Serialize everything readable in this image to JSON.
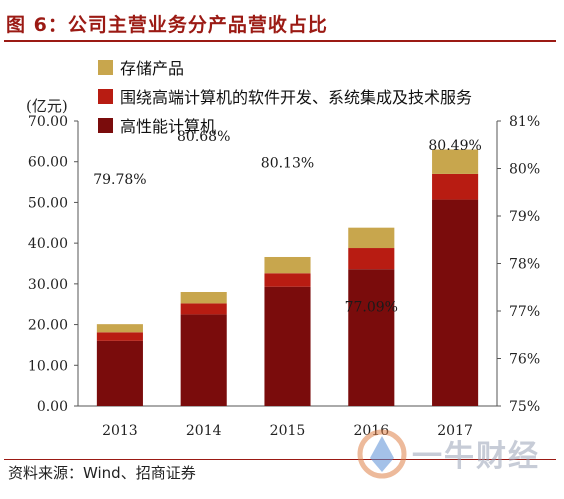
{
  "header": {
    "figure_title": "图 6：公司主营业务分产品营收占比"
  },
  "footer": {
    "source": "资料来源：Wind、招商证券"
  },
  "watermark": {
    "text": "一牛财经"
  },
  "chart_data": {
    "type": "bar",
    "stacked": true,
    "title": "",
    "ylabel": "(亿元)",
    "y2label": "",
    "categories": [
      "2013",
      "2014",
      "2015",
      "2016",
      "2017"
    ],
    "ylim": [
      0,
      70
    ],
    "yticks": [
      "0.00",
      "10.00",
      "20.00",
      "30.00",
      "40.00",
      "50.00",
      "60.00",
      "70.00"
    ],
    "y2lim": [
      75,
      81
    ],
    "y2ticks": [
      "75%",
      "76%",
      "77%",
      "78%",
      "79%",
      "80%",
      "81%"
    ],
    "grid": false,
    "legend_position": "top-left",
    "series": [
      {
        "name": "高性能计算机",
        "color": "#7a0c0c",
        "values": [
          16.0,
          22.5,
          29.3,
          33.6,
          50.7
        ]
      },
      {
        "name": "围绕高端计算机的软件开发、系统集成及技术服务",
        "color": "#b81c12",
        "values": [
          2.1,
          2.7,
          3.3,
          5.2,
          6.3
        ]
      },
      {
        "name": "存储产品",
        "color": "#c8a64d",
        "values": [
          2.0,
          2.8,
          4.0,
          5.0,
          6.0
        ]
      }
    ],
    "legend_order": [
      2,
      1,
      0
    ],
    "annotations": [
      "79.78%",
      "80.68%",
      "80.13%",
      "77.09%",
      "80.49%"
    ]
  }
}
